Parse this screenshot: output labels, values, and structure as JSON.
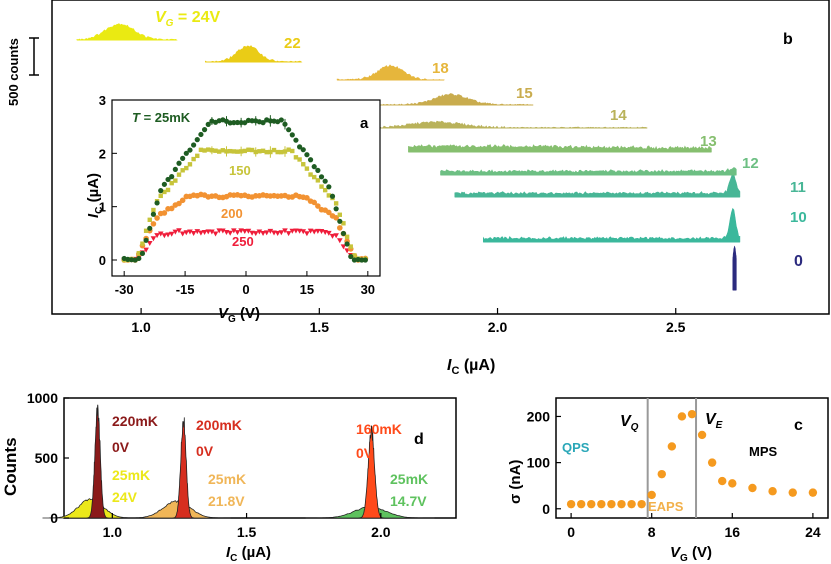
{
  "colors": {
    "axis": "#000000",
    "v0": "#2b2a7e",
    "v10": "#3bb89c",
    "v11": "#48b696",
    "v12": "#6dbf83",
    "v13": "#86bf6f",
    "v14": "#b9b25a",
    "v15": "#c9ac4e",
    "v18": "#e6b63c",
    "v22": "#eacc16",
    "v24": "#eaea12",
    "t25": "#1e5c22",
    "t150": "#c7c43a",
    "t200": "#f29232",
    "t250": "#ef1d3a",
    "label_qps": "#2aa7b8",
    "label_eaps": "#f2b04a",
    "sigma_points": "#f59a1f",
    "divider": "#999999",
    "d_220": "#8b1a1a",
    "d_200": "#d62e1f",
    "d_160": "#ff4a1a",
    "d_25_24": "#ece81a",
    "d_25_218": "#f0b658",
    "d_25_147": "#5ec25e"
  },
  "chart_data": [
    {
      "panel": "b",
      "type": "area",
      "scale_bar": "500 counts",
      "xlabel": "I",
      "xlabel_sub": "C",
      "xlabel_unit": " (µA)",
      "xlim": [
        0.75,
        2.93
      ],
      "xticks": [
        1.0,
        1.5,
        2.0,
        2.5
      ],
      "xtick_labels": [
        "1.0",
        "1.5",
        "2.0",
        "2.5"
      ],
      "series": [
        {
          "label": "0",
          "label_prefix": "",
          "label_sub": "",
          "color_key": "v0",
          "range": [
            2.66,
            2.67
          ],
          "peak": 2.665,
          "width": 0.006,
          "height": 460
        },
        {
          "label": "10",
          "label_prefix": "",
          "label_sub": "",
          "color_key": "v10",
          "range": [
            1.96,
            2.68
          ],
          "peak": 2.66,
          "width": 0.008,
          "height": 320
        },
        {
          "label": "11",
          "label_prefix": "",
          "label_sub": "",
          "color_key": "v11",
          "range": [
            1.88,
            2.68
          ],
          "peak": 2.66,
          "width": 0.008,
          "height": 210
        },
        {
          "label": "12",
          "label_prefix": "",
          "label_sub": "",
          "color_key": "v12",
          "range": [
            1.84,
            2.67
          ],
          "peak": 2.66,
          "width": 0.01,
          "height": 30
        },
        {
          "label": "13",
          "label_prefix": "",
          "label_sub": "",
          "color_key": "v13",
          "range": [
            1.75,
            2.6
          ],
          "peak": 1.9,
          "width": 0.3,
          "height": 20
        },
        {
          "label": "14",
          "label_prefix": "",
          "label_sub": "",
          "color_key": "v14",
          "range": [
            1.55,
            2.42
          ],
          "peak": 1.83,
          "width": 0.07,
          "height": 60
        },
        {
          "label": "15",
          "label_prefix": "",
          "label_sub": "",
          "color_key": "v15",
          "range": [
            1.6,
            2.1
          ],
          "peak": 1.87,
          "width": 0.045,
          "height": 110
        },
        {
          "label": "18",
          "label_prefix": "",
          "label_sub": "",
          "color_key": "v18",
          "range": [
            1.55,
            1.85
          ],
          "peak": 1.7,
          "width": 0.035,
          "height": 150
        },
        {
          "label": "22",
          "label_prefix": "",
          "label_sub": "",
          "color_key": "v22",
          "range": [
            1.18,
            1.45
          ],
          "peak": 1.3,
          "width": 0.03,
          "height": 170
        },
        {
          "label": " = 24V",
          "label_prefix": "V",
          "label_sub": "G",
          "color_key": "v24",
          "range": [
            0.82,
            1.1
          ],
          "peak": 0.94,
          "width": 0.04,
          "height": 170
        }
      ]
    },
    {
      "panel": "a",
      "type": "scatter",
      "xlabel": "V",
      "xlabel_sub": "G",
      "xlabel_unit": " (V)",
      "ylabel": "I",
      "ylabel_sub": "C",
      "ylabel_unit": " (µA)",
      "xlim": [
        -33,
        33
      ],
      "ylim": [
        -0.3,
        3
      ],
      "xticks": [
        -30,
        -15,
        0,
        15,
        30
      ],
      "yticks": [
        0,
        1,
        2,
        3
      ],
      "series": [
        {
          "name": " = 25mK",
          "name_prefix": "T",
          "color_key": "t25",
          "half_width": 26,
          "plateau": 2.6,
          "plateau_half": 9,
          "shoulder": 1.3
        },
        {
          "name": "150",
          "name_prefix": "",
          "color_key": "t150",
          "half_width": 27,
          "plateau": 2.05,
          "plateau_half": 11,
          "shoulder": 1.1
        },
        {
          "name": "200",
          "name_prefix": "",
          "color_key": "t200",
          "half_width": 27,
          "plateau": 1.2,
          "plateau_half": 14,
          "shoulder": 0.8
        },
        {
          "name": "250",
          "name_prefix": "",
          "color_key": "t250",
          "half_width": 27,
          "plateau": 0.52,
          "plateau_half": 18,
          "shoulder": 0.45
        }
      ]
    },
    {
      "panel": "c",
      "type": "scatter",
      "xlabel": "V",
      "xlabel_sub": "G",
      "xlabel_unit": " (V)",
      "ylabel": "σ (nA)",
      "xlim": [
        -1.5,
        25.5
      ],
      "ylim": [
        -20,
        240
      ],
      "xticks": [
        0,
        8,
        16,
        24
      ],
      "yticks": [
        0,
        100,
        200
      ],
      "x": [
        0,
        1,
        2,
        3,
        4,
        5,
        6,
        7,
        8,
        9,
        10,
        11,
        12,
        13,
        14,
        15,
        16,
        18,
        20,
        22,
        24
      ],
      "y": [
        10,
        10,
        10,
        10,
        10,
        10,
        10,
        10,
        30,
        75,
        135,
        200,
        205,
        160,
        100,
        60,
        55,
        45,
        38,
        35,
        35
      ],
      "dividers": [
        7.6,
        12.4
      ],
      "region_labels": {
        "qps": "QPS",
        "eaps": "EAPS",
        "mps": "MPS",
        "vq": "V",
        "vq_sub": "Q",
        "ve": "V",
        "ve_sub": "E"
      }
    },
    {
      "panel": "d",
      "type": "area",
      "xlabel": "I",
      "xlabel_sub": "C",
      "xlabel_unit": " (µA)",
      "ylabel": "Counts",
      "xlim": [
        0.82,
        2.28
      ],
      "ylim": [
        0,
        1000
      ],
      "xticks": [
        1.0,
        1.5,
        2.0
      ],
      "xtick_labels": [
        "1.0",
        "1.5",
        "2.0"
      ],
      "yticks": [
        0,
        500,
        1000
      ],
      "series": [
        {
          "temp": "220mK",
          "gate": "0V",
          "color_key": "d_220",
          "peak": 0.945,
          "width": 0.01,
          "height": 900
        },
        {
          "temp": "25mK",
          "gate": "24V",
          "color_key": "d_25_24",
          "peak": 0.92,
          "width": 0.045,
          "height": 160
        },
        {
          "temp": "200mK",
          "gate": "0V",
          "color_key": "d_200",
          "peak": 1.265,
          "width": 0.01,
          "height": 820
        },
        {
          "temp": "25mK",
          "gate": "21.8V",
          "color_key": "d_25_218",
          "peak": 1.24,
          "width": 0.05,
          "height": 140
        },
        {
          "temp": "160mK",
          "gate": "0V",
          "color_key": "d_160",
          "peak": 1.965,
          "width": 0.012,
          "height": 720
        },
        {
          "temp": "25mK",
          "gate": "14.7V",
          "color_key": "d_25_147",
          "peak": 1.96,
          "width": 0.06,
          "height": 90
        }
      ]
    }
  ]
}
